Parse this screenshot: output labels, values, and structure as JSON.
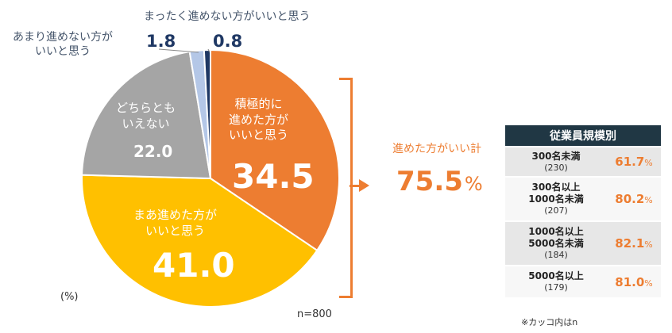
{
  "chart_data": {
    "type": "pie",
    "unit_label": "(%)",
    "n_label": "n=800",
    "slices": [
      {
        "label_lines": [
          "積極的に",
          "進めた方が",
          "いいと思う"
        ],
        "value": 34.5,
        "color": "#ed7d31"
      },
      {
        "label_lines": [
          "まあ進めた方が",
          "いいと思う"
        ],
        "value": 41.0,
        "color": "#ffc000"
      },
      {
        "label_lines": [
          "どちらとも",
          "いえない"
        ],
        "value": 22.0,
        "color": "#a5a5a5"
      },
      {
        "label_lines": [
          "あまり進めない方が",
          "いいと思う"
        ],
        "value": 1.8,
        "color": "#b4c7e7"
      },
      {
        "label_lines": [
          "まったく進めない方がいいと思う"
        ],
        "value": 0.8,
        "color": "#1f3864"
      }
    ],
    "total": {
      "label": "進めた方がいい計",
      "value": "75.5",
      "unit": "%"
    }
  },
  "segment_table": {
    "header": "従業員規模別",
    "rows": [
      {
        "label_lines": [
          "300名未満"
        ],
        "count": "(230)",
        "value": "61.7",
        "unit": "%"
      },
      {
        "label_lines": [
          "300名以上",
          "1000名未満"
        ],
        "count": "(207)",
        "value": "80.2",
        "unit": "%"
      },
      {
        "label_lines": [
          "1000名以上",
          "5000名未満"
        ],
        "count": "(184)",
        "value": "82.1",
        "unit": "%"
      },
      {
        "label_lines": [
          "5000名以上"
        ],
        "count": "(179)",
        "value": "81.0",
        "unit": "%"
      }
    ],
    "note": "※カッコ内はn"
  }
}
